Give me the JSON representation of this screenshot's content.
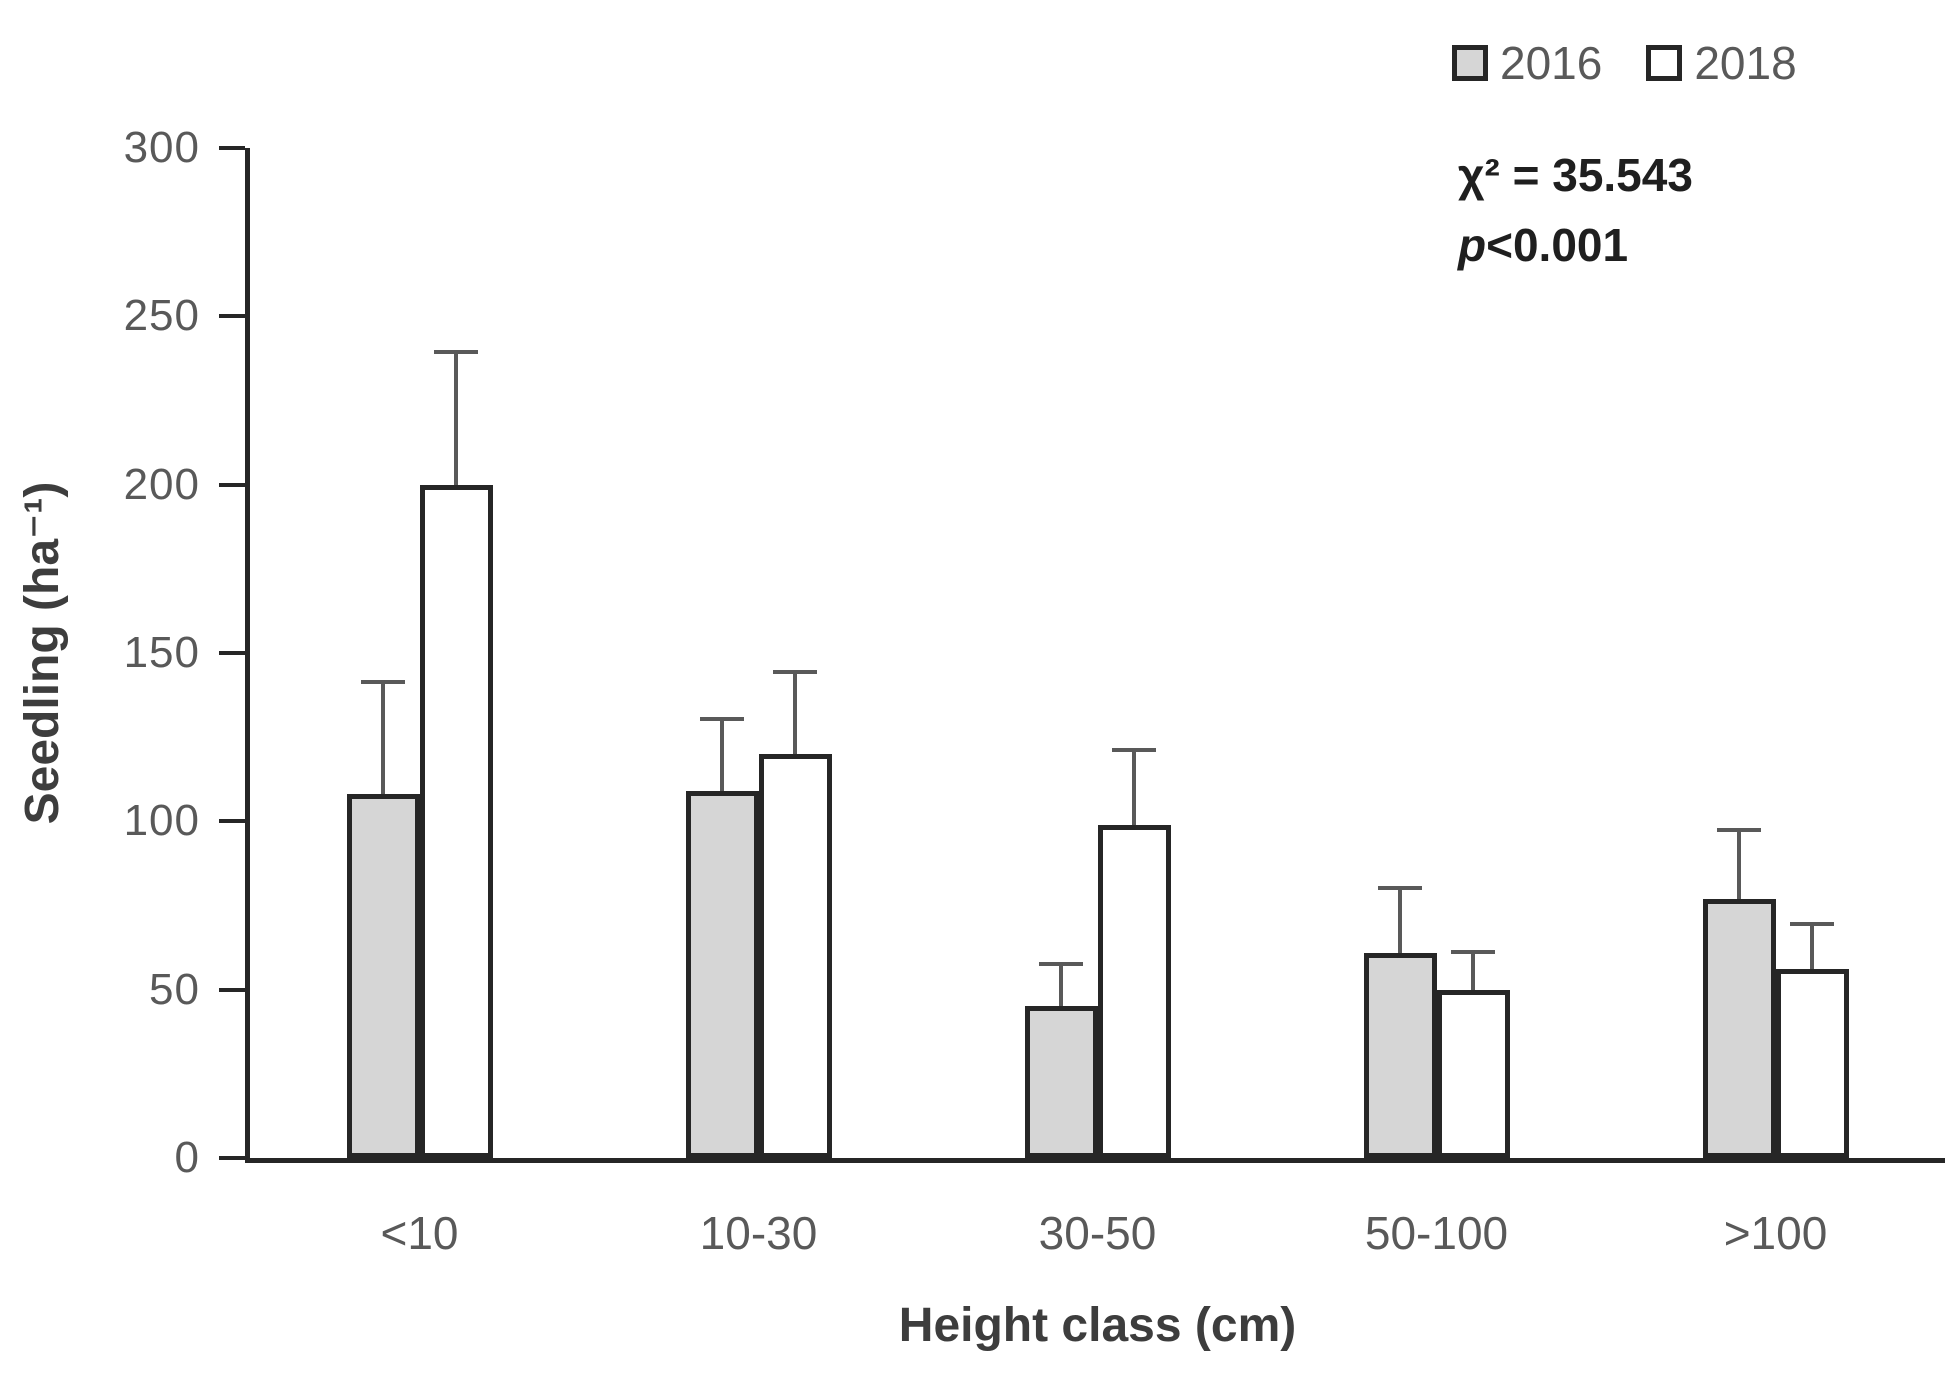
{
  "chart_data": {
    "type": "bar",
    "title": "",
    "xlabel": "Height class (cm)",
    "ylabel": "Seedling (ha⁻¹)",
    "ylim": [
      0,
      300
    ],
    "yticks": [
      0,
      50,
      100,
      150,
      200,
      250,
      300
    ],
    "categories": [
      "<10",
      "10-30",
      "30-50",
      "50-100",
      ">100"
    ],
    "series": [
      {
        "name": "2016",
        "fill": "#d6d6d6",
        "values": [
          108,
          109,
          45,
          61,
          77
        ],
        "errors_upper": [
          34,
          22,
          13,
          20,
          21
        ]
      },
      {
        "name": "2018",
        "fill": "#ffffff",
        "values": [
          200,
          120,
          99,
          50,
          56
        ],
        "errors_upper": [
          40,
          25,
          23,
          12,
          14
        ]
      }
    ],
    "legend_position": "top-right",
    "grid": false,
    "error_bars": "upper-only"
  },
  "annotation": {
    "chi_label": "χ²",
    "chi_rest": " = 35.543",
    "p_label": "p",
    "p_rest": "<0.001"
  },
  "colors": {
    "bar_outline": "#262626",
    "bar_fill_2016": "#d6d6d6",
    "bar_fill_2018": "#ffffff",
    "error_bar": "#595959",
    "tick_text": "#595959",
    "axis_title_text": "#3d3d3d",
    "annotation_text": "#1f1f1f",
    "axis_line": "#262626"
  }
}
